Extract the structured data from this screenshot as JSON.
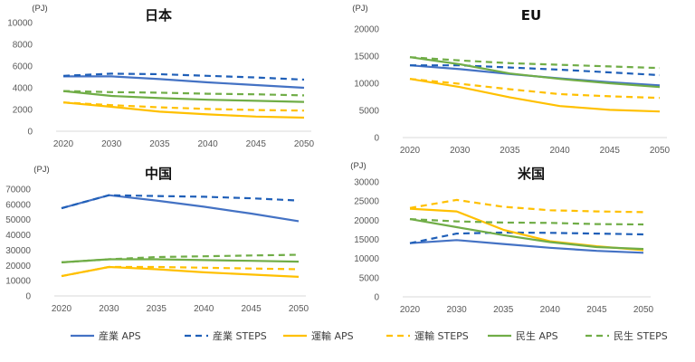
{
  "chart_data": [
    {
      "type": "line",
      "title": "日本",
      "unit": "(PJ)",
      "x": [
        "2020",
        "2030",
        "2035",
        "2040",
        "2045",
        "2050"
      ],
      "ylim": [
        0,
        10000
      ],
      "yticks": [
        0,
        2000,
        4000,
        6000,
        8000,
        10000
      ],
      "grid": false,
      "series": [
        {
          "name": "産業 APS",
          "values": [
            5050,
            5050,
            4800,
            4500,
            4250,
            4000
          ]
        },
        {
          "name": "産業 STEPS",
          "values": [
            5100,
            5300,
            5250,
            5100,
            4950,
            4750
          ]
        },
        {
          "name": "運輸 APS",
          "values": [
            2650,
            2250,
            1800,
            1550,
            1350,
            1250
          ]
        },
        {
          "name": "運輸 STEPS",
          "values": [
            2650,
            2400,
            2200,
            2050,
            1950,
            1900
          ]
        },
        {
          "name": "民生 APS",
          "values": [
            3700,
            3250,
            3050,
            2900,
            2800,
            2700
          ]
        },
        {
          "name": "民生 STEPS",
          "values": [
            3700,
            3600,
            3550,
            3450,
            3400,
            3300
          ]
        }
      ]
    },
    {
      "type": "line",
      "title": "EU",
      "unit": "(PJ)",
      "x": [
        "2020",
        "2030",
        "2035",
        "2040",
        "2045",
        "2050"
      ],
      "ylim": [
        0,
        20000
      ],
      "yticks": [
        0,
        5000,
        10000,
        15000,
        20000
      ],
      "grid": false,
      "series": [
        {
          "name": "産業 APS",
          "values": [
            13300,
            12600,
            11700,
            10900,
            10200,
            9600
          ]
        },
        {
          "name": "産業 STEPS",
          "values": [
            13300,
            13300,
            12900,
            12500,
            12000,
            11500
          ]
        },
        {
          "name": "運輸 APS",
          "values": [
            10800,
            9300,
            7400,
            5800,
            5100,
            4800
          ]
        },
        {
          "name": "運輸 STEPS",
          "values": [
            10800,
            9900,
            8900,
            8000,
            7600,
            7300
          ]
        },
        {
          "name": "民生 APS",
          "values": [
            14800,
            13500,
            11800,
            10800,
            10000,
            9300
          ]
        },
        {
          "name": "民生 STEPS",
          "values": [
            14800,
            14200,
            13700,
            13400,
            13100,
            12800
          ]
        }
      ]
    },
    {
      "type": "line",
      "title": "中国",
      "unit": "(PJ)",
      "x": [
        "2020",
        "2030",
        "2035",
        "2040",
        "2045",
        "2050"
      ],
      "ylim": [
        0,
        70000
      ],
      "yticks": [
        0,
        10000,
        20000,
        30000,
        40000,
        50000,
        60000,
        70000
      ],
      "grid": false,
      "series": [
        {
          "name": "産業 APS",
          "values": [
            57500,
            66000,
            62500,
            58500,
            54000,
            49000
          ]
        },
        {
          "name": "産業 STEPS",
          "values": [
            57500,
            66000,
            65500,
            65000,
            64000,
            62500
          ]
        },
        {
          "name": "運輸 APS",
          "values": [
            13000,
            19000,
            17500,
            15500,
            14000,
            12500
          ]
        },
        {
          "name": "運輸 STEPS",
          "values": [
            13000,
            19000,
            19000,
            18500,
            18000,
            17500
          ]
        },
        {
          "name": "民生 APS",
          "values": [
            22000,
            24000,
            24000,
            23500,
            23000,
            22500
          ]
        },
        {
          "name": "民生 STEPS",
          "values": [
            22000,
            24000,
            25500,
            26000,
            26500,
            27000
          ]
        }
      ]
    },
    {
      "type": "line",
      "title": "米国",
      "unit": "(PJ)",
      "x": [
        "2020",
        "2030",
        "2035",
        "2040",
        "2045",
        "2050"
      ],
      "ylim": [
        0,
        30000
      ],
      "yticks": [
        0,
        5000,
        10000,
        15000,
        20000,
        25000,
        30000
      ],
      "grid": false,
      "series": [
        {
          "name": "産業 APS",
          "values": [
            14000,
            14800,
            13800,
            12800,
            12000,
            11500
          ]
        },
        {
          "name": "産業 STEPS",
          "values": [
            14000,
            16500,
            16800,
            16700,
            16500,
            16300
          ]
        },
        {
          "name": "運輸 APS",
          "values": [
            23000,
            22300,
            17500,
            14500,
            13200,
            12200
          ]
        },
        {
          "name": "運輸 STEPS",
          "values": [
            23200,
            25300,
            23500,
            22600,
            22300,
            22100
          ]
        },
        {
          "name": "民生 APS",
          "values": [
            20300,
            18200,
            16100,
            14300,
            13000,
            12500
          ]
        },
        {
          "name": "民生 STEPS",
          "values": [
            20300,
            19700,
            19400,
            19300,
            19000,
            18900
          ]
        }
      ]
    }
  ],
  "legend": {
    "position": "bottom",
    "items": [
      {
        "label": "産業 APS",
        "color": "#4472C4",
        "dashed": false
      },
      {
        "label": "産業 STEPS",
        "color": "#1F5FB8",
        "dashed": true
      },
      {
        "label": "運輸 APS",
        "color": "#FFC000",
        "dashed": false
      },
      {
        "label": "運輸 STEPS",
        "color": "#FFC000",
        "dashed": true
      },
      {
        "label": "民生 APS",
        "color": "#70AD47",
        "dashed": false
      },
      {
        "label": "民生 STEPS",
        "color": "#70AD47",
        "dashed": true
      }
    ]
  }
}
